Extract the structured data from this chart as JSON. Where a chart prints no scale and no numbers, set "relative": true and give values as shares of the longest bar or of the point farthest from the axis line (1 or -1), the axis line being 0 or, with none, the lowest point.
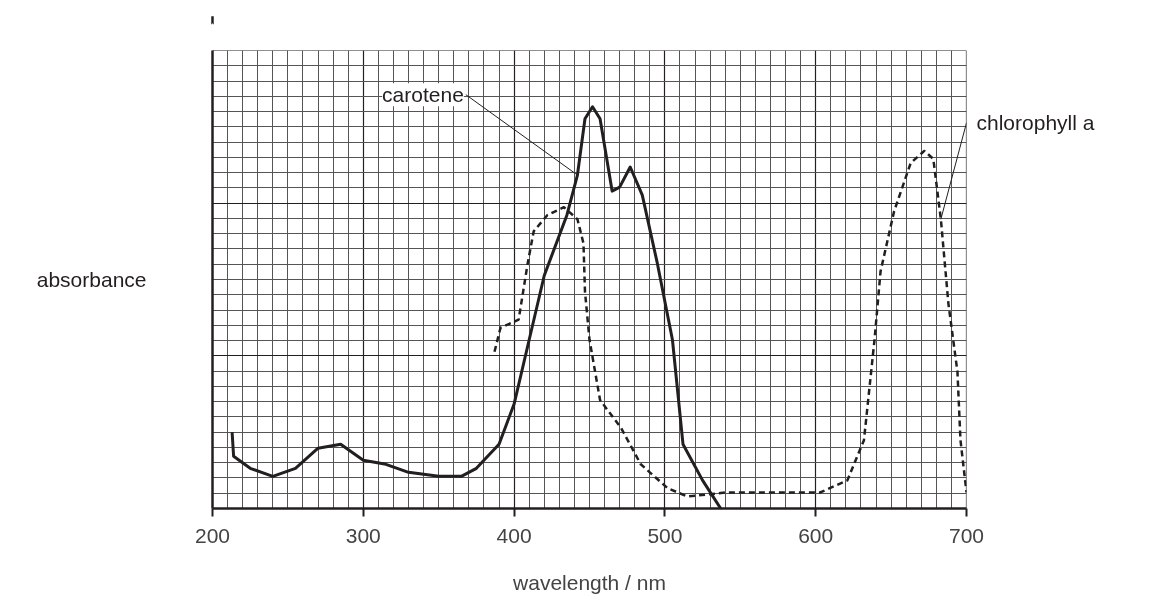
{
  "chart_data": {
    "type": "line",
    "xlabel": "wavelength / nm",
    "ylabel": "absorbance",
    "relative": true,
    "xlim": [
      200,
      700
    ],
    "xticks": [
      200,
      300,
      400,
      500,
      600,
      700
    ],
    "grid": true,
    "series": [
      {
        "name": "carotene",
        "color": "#231f20",
        "line_style": "solid",
        "x": [
          213,
          214,
          225,
          240,
          255,
          270,
          285,
          300,
          315,
          330,
          350,
          365,
          375,
          390,
          400,
          410,
          420,
          435,
          442,
          447,
          452,
          457,
          465,
          470,
          477,
          485,
          495,
          505,
          512,
          525,
          537
        ],
        "values": [
          0.19,
          0.13,
          0.1,
          0.08,
          0.1,
          0.15,
          0.16,
          0.12,
          0.11,
          0.09,
          0.08,
          0.08,
          0.1,
          0.16,
          0.26,
          0.42,
          0.58,
          0.73,
          0.83,
          0.97,
          1,
          0.97,
          0.79,
          0.8,
          0.85,
          0.78,
          0.61,
          0.42,
          0.16,
          0.07,
          0
        ]
      },
      {
        "name": "chlorophyll a",
        "color": "#231f20",
        "line_style": "dashed",
        "x": [
          387,
          391,
          403,
          409,
          413,
          422,
          433,
          442,
          446,
          447,
          450,
          457,
          471,
          484,
          502,
          515,
          541,
          575,
          603,
          621,
          632,
          639,
          643,
          652,
          663,
          672,
          678,
          683,
          688,
          694,
          696,
          700
        ],
        "values": [
          0.39,
          0.45,
          0.47,
          0.61,
          0.69,
          0.73,
          0.75,
          0.72,
          0.66,
          0.54,
          0.42,
          0.27,
          0.2,
          0.11,
          0.05,
          0.03,
          0.04,
          0.04,
          0.04,
          0.07,
          0.17,
          0.42,
          0.59,
          0.74,
          0.86,
          0.89,
          0.87,
          0.72,
          0.51,
          0.34,
          0.17,
          0.04
        ]
      }
    ]
  }
}
